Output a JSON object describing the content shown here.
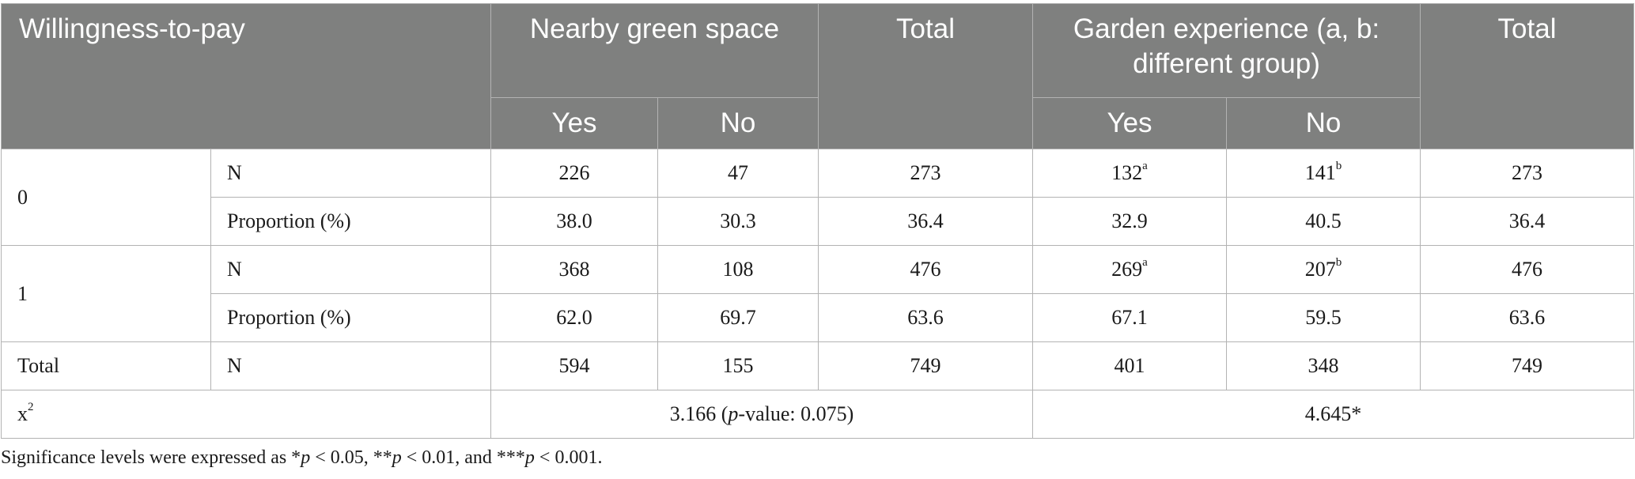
{
  "header": {
    "willingness": "Willingness-to-pay",
    "nearby": "Nearby green space",
    "total1": "Total",
    "garden": "Garden experience (a, b: different group)",
    "total2": "Total",
    "yes1": "Yes",
    "no1": "No",
    "yes2": "Yes",
    "no2": "No"
  },
  "rows": {
    "g0": {
      "label": "0",
      "n": {
        "label": "N",
        "yes1": "226",
        "no1": "47",
        "tot1": "273",
        "yes2": "132",
        "yes2_sup": "a",
        "no2": "141",
        "no2_sup": "b",
        "tot2": "273"
      },
      "p": {
        "label": "Proportion (%)",
        "yes1": "38.0",
        "no1": "30.3",
        "tot1": "36.4",
        "yes2": "32.9",
        "no2": "40.5",
        "tot2": "36.4"
      }
    },
    "g1": {
      "label": "1",
      "n": {
        "label": "N",
        "yes1": "368",
        "no1": "108",
        "tot1": "476",
        "yes2": "269",
        "yes2_sup": "a",
        "no2": "207",
        "no2_sup": "b",
        "tot2": "476"
      },
      "p": {
        "label": "Proportion (%)",
        "yes1": "62.0",
        "no1": "69.7",
        "tot1": "63.6",
        "yes2": "67.1",
        "no2": "59.5",
        "tot2": "63.6"
      }
    },
    "total": {
      "label": "Total",
      "n_label": "N",
      "yes1": "594",
      "no1": "155",
      "tot1": "749",
      "yes2": "401",
      "no2": "348",
      "tot2": "749"
    },
    "chi": {
      "label_base": "x",
      "label_sup": "2",
      "nearby_value": "3.166 (",
      "nearby_p": "p",
      "nearby_rest": "-value: 0.075)",
      "garden": "4.645*"
    }
  },
  "note": {
    "t1": "Significance levels were expressed as *",
    "p1": "p",
    "t2": " < 0.05, **",
    "p2": "p",
    "t3": " < 0.01, and ***",
    "p3": "p",
    "t4": " < 0.001."
  }
}
